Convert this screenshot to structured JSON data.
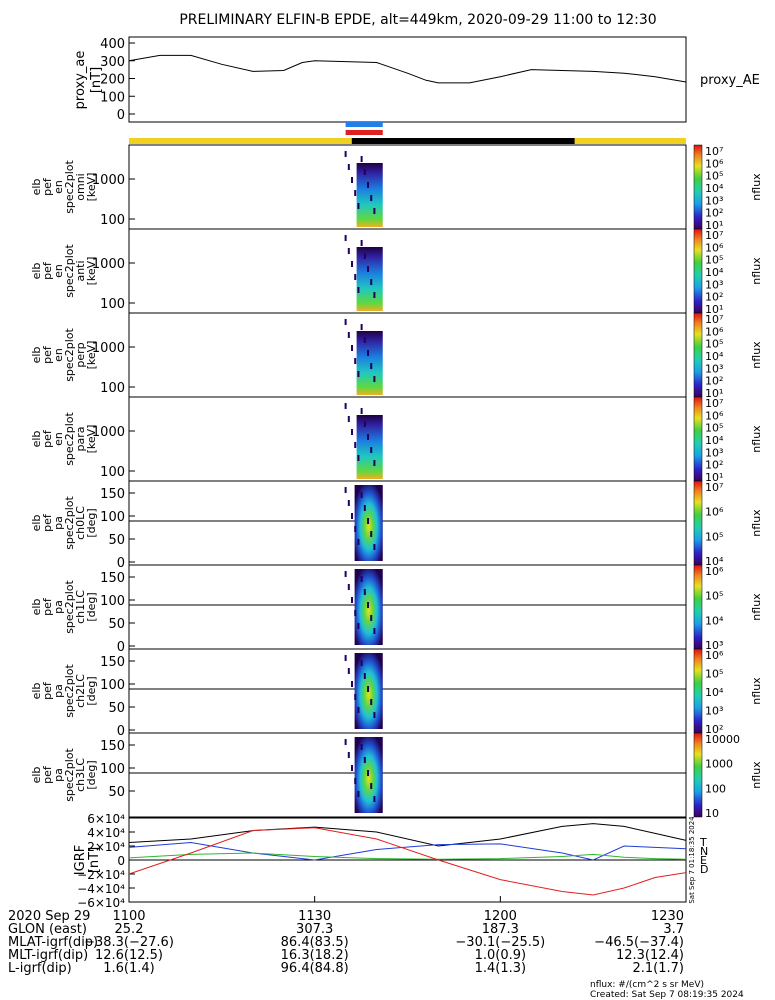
{
  "title": "PRELIMINARY ELFIN-B EPDE, alt=449km, 2020-09-29 11:00 to 12:30",
  "proxy_ae": {
    "ylabel": "proxy_ae",
    "yunit": "[nT]",
    "yticks": [
      "400",
      "300",
      "200",
      "100",
      "0"
    ],
    "legend": "proxy_AE"
  },
  "panels": [
    {
      "labels": [
        "elb",
        "pef",
        "en",
        "spec2plot",
        "omni",
        "[keV]"
      ],
      "yticks": [
        "1000",
        "100"
      ],
      "cbar_ticks": [
        "10⁷",
        "10⁶",
        "10⁵",
        "10⁴",
        "10³",
        "10²",
        "10¹"
      ]
    },
    {
      "labels": [
        "elb",
        "pef",
        "en",
        "spec2plot",
        "anti",
        "[keV]"
      ],
      "yticks": [
        "1000",
        "100"
      ],
      "cbar_ticks": [
        "10⁷",
        "10⁶",
        "10⁵",
        "10⁴",
        "10³",
        "10²",
        "10¹"
      ]
    },
    {
      "labels": [
        "elb",
        "pef",
        "en",
        "spec2plot",
        "perp",
        "[keV]"
      ],
      "yticks": [
        "1000",
        "100"
      ],
      "cbar_ticks": [
        "10⁷",
        "10⁶",
        "10⁵",
        "10⁴",
        "10³",
        "10²",
        "10¹"
      ]
    },
    {
      "labels": [
        "elb",
        "pef",
        "en",
        "spec2plot",
        "para",
        "[keV]"
      ],
      "yticks": [
        "1000",
        "100"
      ],
      "cbar_ticks": [
        "10⁷",
        "10⁶",
        "10⁵",
        "10⁴",
        "10³",
        "10²",
        "10¹"
      ]
    },
    {
      "labels": [
        "elb",
        "pef",
        "pa",
        "spec2plot",
        "ch0LC",
        "[deg]"
      ],
      "yticks": [
        "150",
        "100",
        "50",
        "0"
      ],
      "cbar_ticks": [
        "10⁷",
        "10⁶",
        "10⁵",
        "10⁴"
      ]
    },
    {
      "labels": [
        "elb",
        "pef",
        "pa",
        "spec2plot",
        "ch1LC",
        "[deg]"
      ],
      "yticks": [
        "150",
        "100",
        "50",
        "0"
      ],
      "cbar_ticks": [
        "10⁶",
        "10⁵",
        "10⁴",
        "10³"
      ]
    },
    {
      "labels": [
        "elb",
        "pef",
        "pa",
        "spec2plot",
        "ch2LC",
        "[deg]"
      ],
      "yticks": [
        "150",
        "100",
        "50",
        "0"
      ],
      "cbar_ticks": [
        "10⁶",
        "10⁵",
        "10⁴",
        "10³",
        "10²"
      ]
    },
    {
      "labels": [
        "elb",
        "pef",
        "pa",
        "spec2plot",
        "ch3LC",
        "[deg]"
      ],
      "yticks": [
        "150",
        "100",
        "50"
      ],
      "cbar_ticks": [
        "10000",
        "1000",
        "100",
        "10"
      ]
    }
  ],
  "cbar_label": "nflux",
  "bfield": {
    "ylabel": "IGRF",
    "yunit": "[nT]",
    "yticks": [
      "6×10⁴",
      "4×10⁴",
      "2×10⁴",
      "0",
      "−2×10⁴",
      "−4×10⁴",
      "−6×10⁴"
    ],
    "legend": [
      {
        "label": "T",
        "color": "#000000"
      },
      {
        "label": "N",
        "color": "#1f3cd6"
      },
      {
        "label": "E",
        "color": "#2eb82e"
      },
      {
        "label": "D",
        "color": "#e02020"
      }
    ],
    "stamp": "Sat Sep 7 01:18:35 2024"
  },
  "xaxis": {
    "ticks": [
      "1100",
      "1130",
      "1200",
      "1230"
    ],
    "rows": [
      {
        "label": "2020 Sep 29",
        "values": [
          "1100",
          "1130",
          "1200",
          "1230"
        ]
      },
      {
        "label": "GLON (east)",
        "values": [
          "25.2",
          "307.3",
          "187.3",
          "3.7"
        ]
      },
      {
        "label": "MLAT-igrf(dip)",
        "values": [
          "−38.3(−27.6)",
          "86.4(83.5)",
          "−30.1(−25.5)",
          "−46.5(−37.4)"
        ]
      },
      {
        "label": "MLT-igrf(dip)",
        "values": [
          "12.6(12.5)",
          "16.3(18.2)",
          "1.0(0.9)",
          "12.3(12.4)"
        ]
      },
      {
        "label": "L-igrf(dip)",
        "values": [
          "1.6(1.4)",
          "96.4(84.8)",
          "1.4(1.3)",
          "2.1(1.7)"
        ]
      }
    ]
  },
  "footer": {
    "units": "nflux: #/(cm^2 s sr MeV)",
    "created": "Created: Sat Sep  7 08:19:35 2024"
  },
  "chart_data": {
    "type": "line",
    "title": "PRELIMINARY ELFIN-B EPDE, alt=449km, 2020-09-29 11:00 to 12:30",
    "proxy_ae_series": {
      "name": "proxy_AE",
      "x_minutes": [
        0,
        5,
        10,
        15,
        20,
        25,
        28,
        30,
        35,
        40,
        45,
        48,
        50,
        55,
        60,
        65,
        70,
        75,
        80,
        85,
        90
      ],
      "y": [
        300,
        330,
        330,
        280,
        240,
        245,
        290,
        300,
        295,
        290,
        230,
        190,
        175,
        175,
        210,
        250,
        245,
        240,
        230,
        210,
        180
      ],
      "ylim": [
        0,
        400
      ]
    },
    "science_zone_minutes": [
      35,
      41
    ],
    "igrf_series": [
      {
        "name": "T",
        "x_minutes": [
          0,
          10,
          20,
          30,
          40,
          50,
          60,
          70,
          75,
          80,
          85,
          90
        ],
        "y": [
          25000,
          30000,
          42000,
          47000,
          40000,
          20000,
          30000,
          48000,
          52000,
          48000,
          38000,
          28000
        ]
      },
      {
        "name": "N",
        "x_minutes": [
          0,
          10,
          20,
          30,
          40,
          50,
          60,
          70,
          75,
          80,
          85,
          90
        ],
        "y": [
          18000,
          25000,
          10000,
          0,
          15000,
          22000,
          23000,
          10000,
          0,
          20000,
          18000,
          16000
        ]
      },
      {
        "name": "E",
        "x_minutes": [
          0,
          10,
          20,
          30,
          40,
          50,
          60,
          70,
          75,
          80,
          85,
          90
        ],
        "y": [
          3000,
          8000,
          10000,
          5000,
          2000,
          1000,
          2000,
          5000,
          8000,
          4000,
          2000,
          1000
        ]
      },
      {
        "name": "D",
        "x_minutes": [
          0,
          10,
          20,
          30,
          40,
          50,
          60,
          70,
          75,
          80,
          85,
          90
        ],
        "y": [
          -20000,
          10000,
          42000,
          46000,
          30000,
          0,
          -28000,
          -45000,
          -50000,
          -40000,
          -25000,
          -18000
        ]
      }
    ],
    "igrf_ylim": [
      -60000,
      60000
    ],
    "xlabel": "",
    "x_ticks": [
      "1100",
      "1130",
      "1200",
      "1230"
    ]
  }
}
